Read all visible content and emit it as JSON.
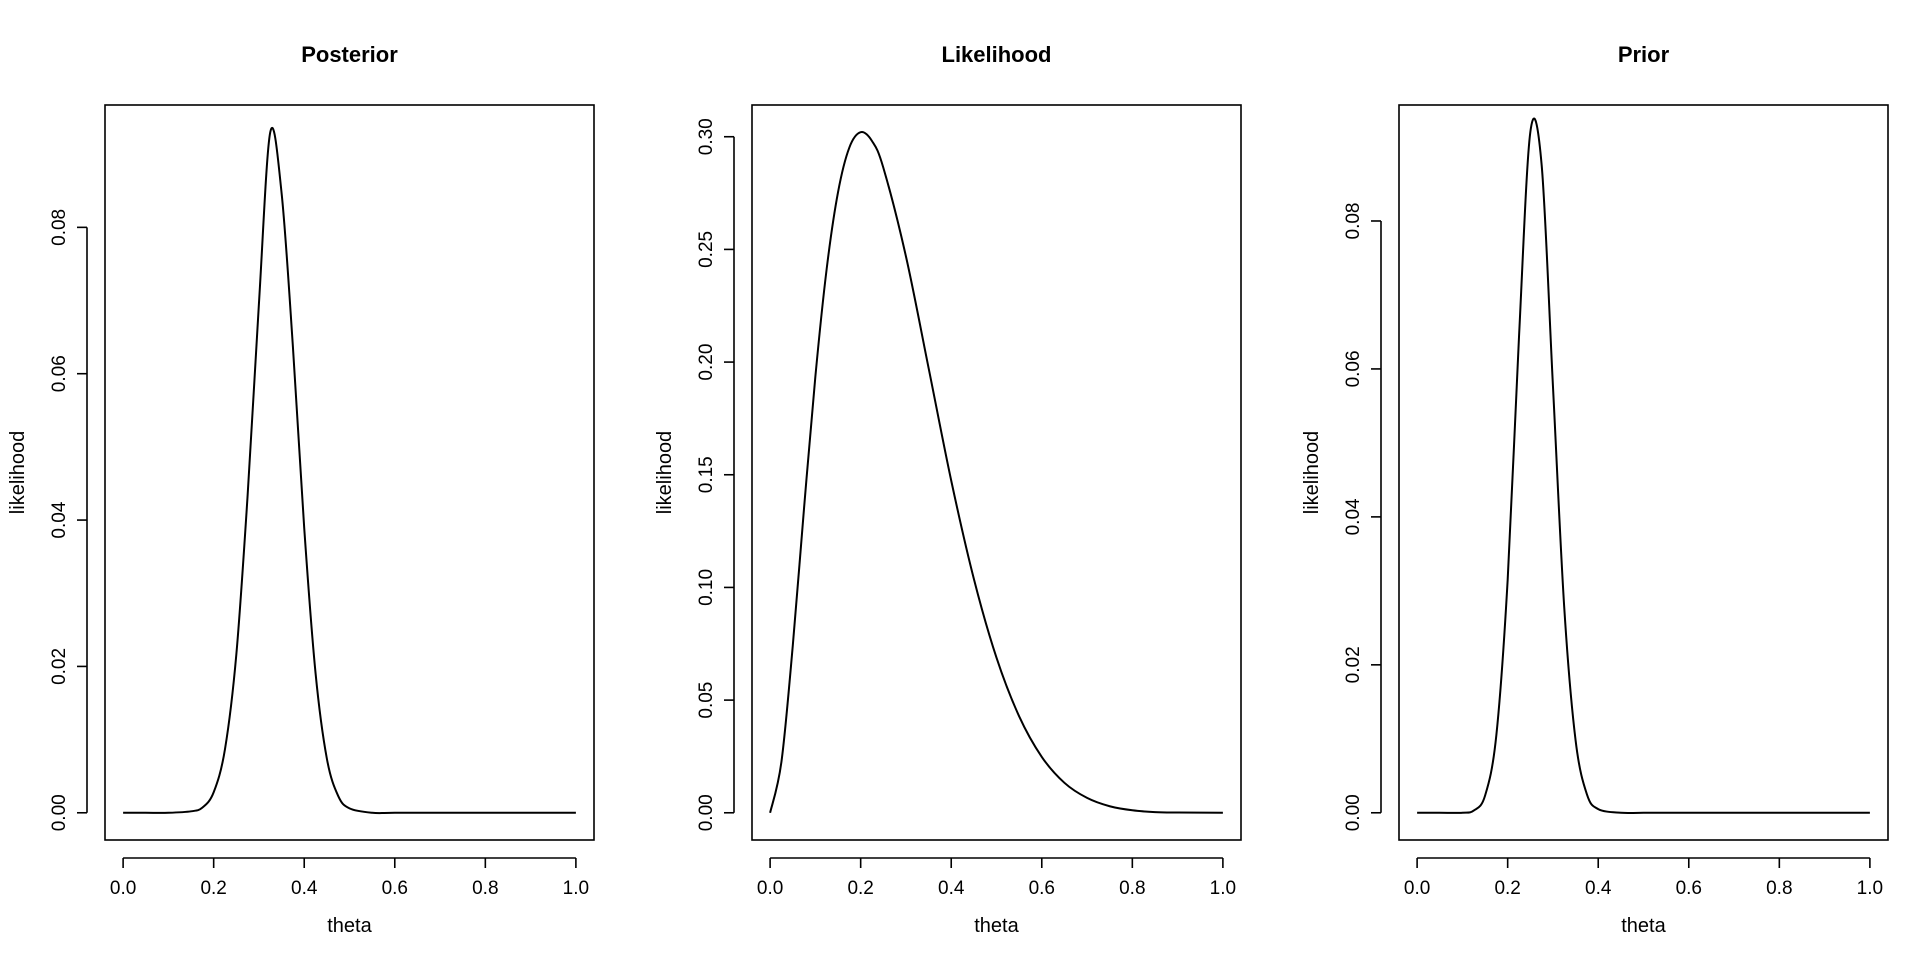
{
  "chart_data": [
    {
      "type": "line",
      "title": "Posterior",
      "xlabel": "theta",
      "ylabel": "likelihood",
      "xlim": [
        0,
        1
      ],
      "ylim": [
        0,
        0.093
      ],
      "xticks": [
        0,
        0.2,
        0.4,
        0.6,
        0.8,
        1
      ],
      "xtick_labels": [
        "0.0",
        "0.2",
        "0.4",
        "0.6",
        "0.8",
        "1.0"
      ],
      "yticks": [
        0,
        0.02,
        0.04,
        0.06,
        0.08
      ],
      "ytick_labels": [
        "0.00",
        "0.02",
        "0.04",
        "0.06",
        "0.08"
      ],
      "grid": false,
      "series": [
        {
          "x": [
            0,
            0.05,
            0.1,
            0.15,
            0.175,
            0.2,
            0.225,
            0.25,
            0.275,
            0.3,
            0.325,
            0.35,
            0.375,
            0.4,
            0.425,
            0.45,
            0.475,
            0.5,
            0.55,
            0.6,
            0.7,
            0.8,
            0.9,
            1
          ],
          "y": [
            0,
            0,
            0,
            0.0002,
            0.0007,
            0.0028,
            0.0087,
            0.0216,
            0.0434,
            0.0696,
            0.093,
            0.0847,
            0.0637,
            0.0389,
            0.0191,
            0.0074,
            0.0023,
            0.0006,
            0,
            0,
            0,
            0,
            0,
            0
          ]
        }
      ]
    },
    {
      "type": "line",
      "title": "Likelihood",
      "xlabel": "theta",
      "ylabel": "likelihood",
      "xlim": [
        0,
        1
      ],
      "ylim": [
        0,
        0.302
      ],
      "xticks": [
        0,
        0.2,
        0.4,
        0.6,
        0.8,
        1
      ],
      "xtick_labels": [
        "0.0",
        "0.2",
        "0.4",
        "0.6",
        "0.8",
        "1.0"
      ],
      "yticks": [
        0,
        0.05,
        0.1,
        0.15,
        0.2,
        0.25,
        0.3
      ],
      "ytick_labels": [
        "0.00",
        "0.05",
        "0.10",
        "0.15",
        "0.20",
        "0.25",
        "0.30"
      ],
      "grid": false,
      "series": [
        {
          "x": [
            0,
            0.025,
            0.05,
            0.075,
            0.1,
            0.125,
            0.15,
            0.175,
            0.2,
            0.225,
            0.25,
            0.3,
            0.35,
            0.4,
            0.45,
            0.5,
            0.55,
            0.6,
            0.65,
            0.7,
            0.75,
            0.8,
            0.85,
            0.9,
            1
          ],
          "y": [
            0,
            0.0226,
            0.074,
            0.1353,
            0.1937,
            0.2415,
            0.2754,
            0.2952,
            0.302,
            0.2981,
            0.2863,
            0.2469,
            0.1974,
            0.1474,
            0.1038,
            0.0688,
            0.0428,
            0.0248,
            0.0133,
            0.0066,
            0.0029,
            0.0011,
            0.0003,
            0.0001,
            0
          ]
        }
      ]
    },
    {
      "type": "line",
      "title": "Prior",
      "xlabel": "theta",
      "ylabel": "likelihood",
      "xlim": [
        0,
        1
      ],
      "ylim": [
        0,
        0.092
      ],
      "xticks": [
        0,
        0.2,
        0.4,
        0.6,
        0.8,
        1
      ],
      "xtick_labels": [
        "0.0",
        "0.2",
        "0.4",
        "0.6",
        "0.8",
        "1.0"
      ],
      "yticks": [
        0,
        0.02,
        0.04,
        0.06,
        0.08
      ],
      "ytick_labels": [
        "0.00",
        "0.02",
        "0.04",
        "0.06",
        "0.08"
      ],
      "grid": false,
      "series": [
        {
          "x": [
            0,
            0.05,
            0.1,
            0.125,
            0.15,
            0.175,
            0.2,
            0.225,
            0.25,
            0.275,
            0.3,
            0.325,
            0.35,
            0.375,
            0.4,
            0.45,
            0.5,
            0.6,
            0.7,
            0.8,
            0.9,
            1
          ],
          "y": [
            0,
            0,
            0,
            0.0003,
            0.0023,
            0.0105,
            0.0315,
            0.0643,
            0.092,
            0.0876,
            0.0577,
            0.0277,
            0.0098,
            0.0025,
            0.0005,
            0,
            0,
            0,
            0,
            0,
            0,
            0
          ]
        }
      ]
    }
  ]
}
